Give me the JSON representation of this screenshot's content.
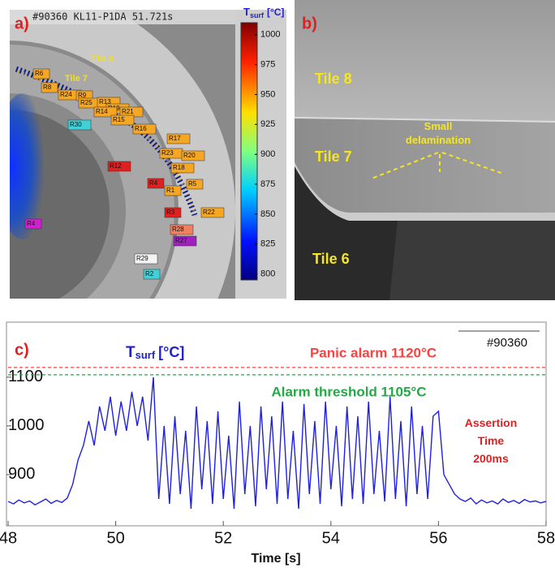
{
  "chart_data": [
    {
      "type": "thermal-image",
      "label": "a)",
      "header": "#90360 KL11-P1DA 51.721s",
      "tile_labels": [
        "Tile 8",
        "Tile 7"
      ],
      "colorbar_title": {
        "symbol": "T",
        "subscript": "surf",
        "unit": "[°C]"
      },
      "clim": [
        795,
        1010
      ],
      "cticks": [
        800,
        825,
        850,
        875,
        900,
        925,
        950,
        975,
        1000
      ],
      "regions": [
        {
          "text": "R6",
          "color": "#f5a623"
        },
        {
          "text": "R8",
          "color": "#f5a623"
        },
        {
          "text": "R24",
          "color": "#f5a623"
        },
        {
          "text": "R9",
          "color": "#f5a623"
        },
        {
          "text": "R25",
          "color": "#f5a623"
        },
        {
          "text": "R13",
          "color": "#f5a623"
        },
        {
          "text": "R19",
          "color": "#f5a623"
        },
        {
          "text": "R14",
          "color": "#f5a623"
        },
        {
          "text": "R21",
          "color": "#f5a623"
        },
        {
          "text": "R15",
          "color": "#f5a623"
        },
        {
          "text": "R16",
          "color": "#f5a623"
        },
        {
          "text": "R30",
          "color": "#3fd0d8"
        },
        {
          "text": "R17",
          "color": "#f5a623"
        },
        {
          "text": "R23",
          "color": "#f5a623"
        },
        {
          "text": "R20",
          "color": "#f5a623"
        },
        {
          "text": "R18",
          "color": "#f5a623"
        },
        {
          "text": "R12",
          "color": "#e02020"
        },
        {
          "text": "R4",
          "color": "#e02020"
        },
        {
          "text": "R1",
          "color": "#f5a623"
        },
        {
          "text": "R5",
          "color": "#f5a623"
        },
        {
          "text": "R3",
          "color": "#e02020"
        },
        {
          "text": "R22",
          "color": "#f5a623"
        },
        {
          "text": "R28",
          "color": "#f08060"
        },
        {
          "text": "R27",
          "color": "#a020c0"
        },
        {
          "text": "R29",
          "color": "#f4f4f4"
        },
        {
          "text": "R2",
          "color": "#3fd0d8"
        },
        {
          "text": "R4",
          "color": "#d020d0"
        }
      ]
    },
    {
      "type": "photo",
      "label": "b)",
      "tile_labels": [
        "Tile 8",
        "Tile 7",
        "Tile 6"
      ],
      "annotation": "Small delamination"
    },
    {
      "type": "line",
      "label": "c)",
      "shot": "#90360",
      "legend": {
        "symbol": "T",
        "subscript": "surf",
        "unit": "[°C]"
      },
      "xlabel": "Time [s]",
      "xlim": [
        48,
        58
      ],
      "xticks": [
        48,
        50,
        52,
        54,
        56,
        58
      ],
      "ylim": [
        795,
        1213
      ],
      "yticks": [
        900,
        1000,
        1100
      ],
      "hlines": [
        {
          "value": 1120,
          "color": "#ff4040",
          "label": "Panic alarm 1120°C"
        },
        {
          "value": 1105,
          "color": "#22aa44",
          "label": "Alarm threshold 1105°C"
        }
      ],
      "note": "Assertion Time 200ms",
      "x": [
        48.0,
        48.1,
        48.2,
        48.3,
        48.4,
        48.5,
        48.6,
        48.7,
        48.8,
        48.9,
        49.0,
        49.1,
        49.2,
        49.3,
        49.4,
        49.5,
        49.6,
        49.7,
        49.8,
        49.9,
        50.0,
        50.1,
        50.2,
        50.3,
        50.4,
        50.5,
        50.6,
        50.7,
        50.8,
        50.9,
        51.0,
        51.1,
        51.2,
        51.3,
        51.4,
        51.5,
        51.6,
        51.7,
        51.8,
        51.9,
        52.0,
        52.1,
        52.2,
        52.3,
        52.4,
        52.5,
        52.6,
        52.7,
        52.8,
        52.9,
        53.0,
        53.1,
        53.2,
        53.3,
        53.4,
        53.5,
        53.6,
        53.7,
        53.8,
        53.9,
        54.0,
        54.1,
        54.2,
        54.3,
        54.4,
        54.5,
        54.6,
        54.7,
        54.8,
        54.9,
        55.0,
        55.1,
        55.2,
        55.3,
        55.4,
        55.5,
        55.6,
        55.7,
        55.8,
        55.9,
        56.0,
        56.1,
        56.2,
        56.3,
        56.4,
        56.5,
        56.6,
        56.7,
        56.8,
        56.9,
        57.0,
        57.1,
        57.2,
        57.3,
        57.4,
        57.5,
        57.6,
        57.7,
        57.8,
        57.9,
        58.0
      ],
      "series": [
        {
          "color": "#2020e0",
          "values": [
            845,
            840,
            848,
            842,
            846,
            838,
            844,
            850,
            841,
            847,
            843,
            852,
            880,
            930,
            960,
            1010,
            960,
            1040,
            990,
            1060,
            980,
            1050,
            990,
            1070,
            1000,
            1060,
            970,
            1100,
            850,
            1000,
            840,
            1020,
            860,
            990,
            830,
            1040,
            870,
            1010,
            840,
            1030,
            850,
            980,
            830,
            1050,
            860,
            1000,
            835,
            1040,
            870,
            1020,
            840,
            1050,
            850,
            990,
            830,
            1045,
            860,
            1010,
            840,
            1050,
            870,
            1000,
            835,
            1040,
            850,
            1020,
            840,
            1050,
            860,
            990,
            845,
            1060,
            850,
            1010,
            835,
            1040,
            860,
            1000,
            850,
            1020,
            1030,
            900,
            880,
            860,
            850,
            845,
            852,
            840,
            848,
            842,
            846,
            840,
            850,
            843,
            847,
            841,
            849,
            844,
            846,
            842,
            845
          ]
        }
      ]
    }
  ]
}
